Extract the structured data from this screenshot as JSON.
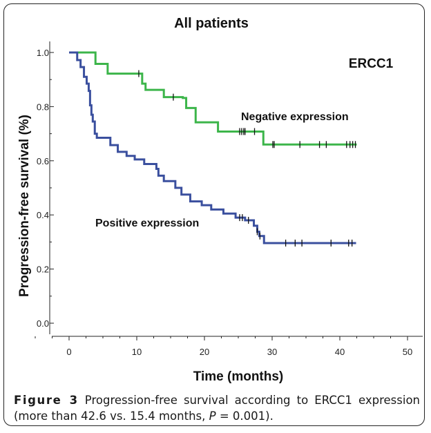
{
  "chart_data": {
    "type": "line",
    "title": "All patients",
    "annotation": "ERCC1",
    "xlabel": "Time (months)",
    "ylabel": "Progression-free survival (%)",
    "xlim": [
      0,
      50
    ],
    "ylim": [
      0,
      1
    ],
    "x_ticks": [
      0,
      10,
      20,
      30,
      40,
      50
    ],
    "y_ticks": [
      0.0,
      0.2,
      0.4,
      0.6,
      0.8,
      1.0
    ],
    "y_tick_labels": [
      "0.0",
      "0.2",
      "0.4",
      "0.6",
      "0.8",
      "1.0"
    ],
    "grid": false,
    "series": [
      {
        "name": "Negative expression",
        "color": "#3cb54a",
        "steps": [
          [
            0,
            1.0
          ],
          [
            3.9,
            0.958
          ],
          [
            5.7,
            0.922
          ],
          [
            10.8,
            0.885
          ],
          [
            11.3,
            0.862
          ],
          [
            14.0,
            0.835
          ],
          [
            16.8,
            0.832
          ],
          [
            17.3,
            0.795
          ],
          [
            18.7,
            0.742
          ],
          [
            22.0,
            0.708
          ],
          [
            28.7,
            0.66
          ],
          [
            42.5,
            0.66
          ]
        ],
        "censored": [
          10.3,
          15.4,
          25.2,
          25.5,
          25.8,
          26.0,
          27.4,
          30.1,
          30.3,
          34.1,
          37.0,
          38.0,
          41.0,
          41.5,
          41.9,
          42.3
        ]
      },
      {
        "name": "Positive expression",
        "color": "#3a4f9e",
        "steps": [
          [
            0,
            1.0
          ],
          [
            1.2,
            0.972
          ],
          [
            1.7,
            0.946
          ],
          [
            2.2,
            0.91
          ],
          [
            2.6,
            0.885
          ],
          [
            2.9,
            0.858
          ],
          [
            3.1,
            0.805
          ],
          [
            3.3,
            0.77
          ],
          [
            3.5,
            0.745
          ],
          [
            3.8,
            0.7
          ],
          [
            4.1,
            0.685
          ],
          [
            6.1,
            0.658
          ],
          [
            7.2,
            0.633
          ],
          [
            8.5,
            0.618
          ],
          [
            9.7,
            0.605
          ],
          [
            11.1,
            0.588
          ],
          [
            12.9,
            0.57
          ],
          [
            13.2,
            0.545
          ],
          [
            14.0,
            0.525
          ],
          [
            15.7,
            0.5
          ],
          [
            16.6,
            0.475
          ],
          [
            17.9,
            0.45
          ],
          [
            19.6,
            0.436
          ],
          [
            21.0,
            0.42
          ],
          [
            22.8,
            0.405
          ],
          [
            24.6,
            0.39
          ],
          [
            26.0,
            0.38
          ],
          [
            27.3,
            0.36
          ],
          [
            27.8,
            0.338
          ],
          [
            28.1,
            0.322
          ],
          [
            28.8,
            0.296
          ],
          [
            42.4,
            0.296
          ]
        ],
        "censored": [
          25.2,
          25.6,
          26.5,
          27.8,
          28.2,
          32.0,
          33.4,
          34.4,
          38.7,
          41.3,
          41.8
        ]
      }
    ]
  },
  "caption": {
    "figure_label": "Figure 3",
    "text_part1": " Progression-free survival according to ERCC1 expression (more than 42.6 vs. 15.4 months, ",
    "p_label": "P",
    "text_part2": " = 0.001)."
  }
}
